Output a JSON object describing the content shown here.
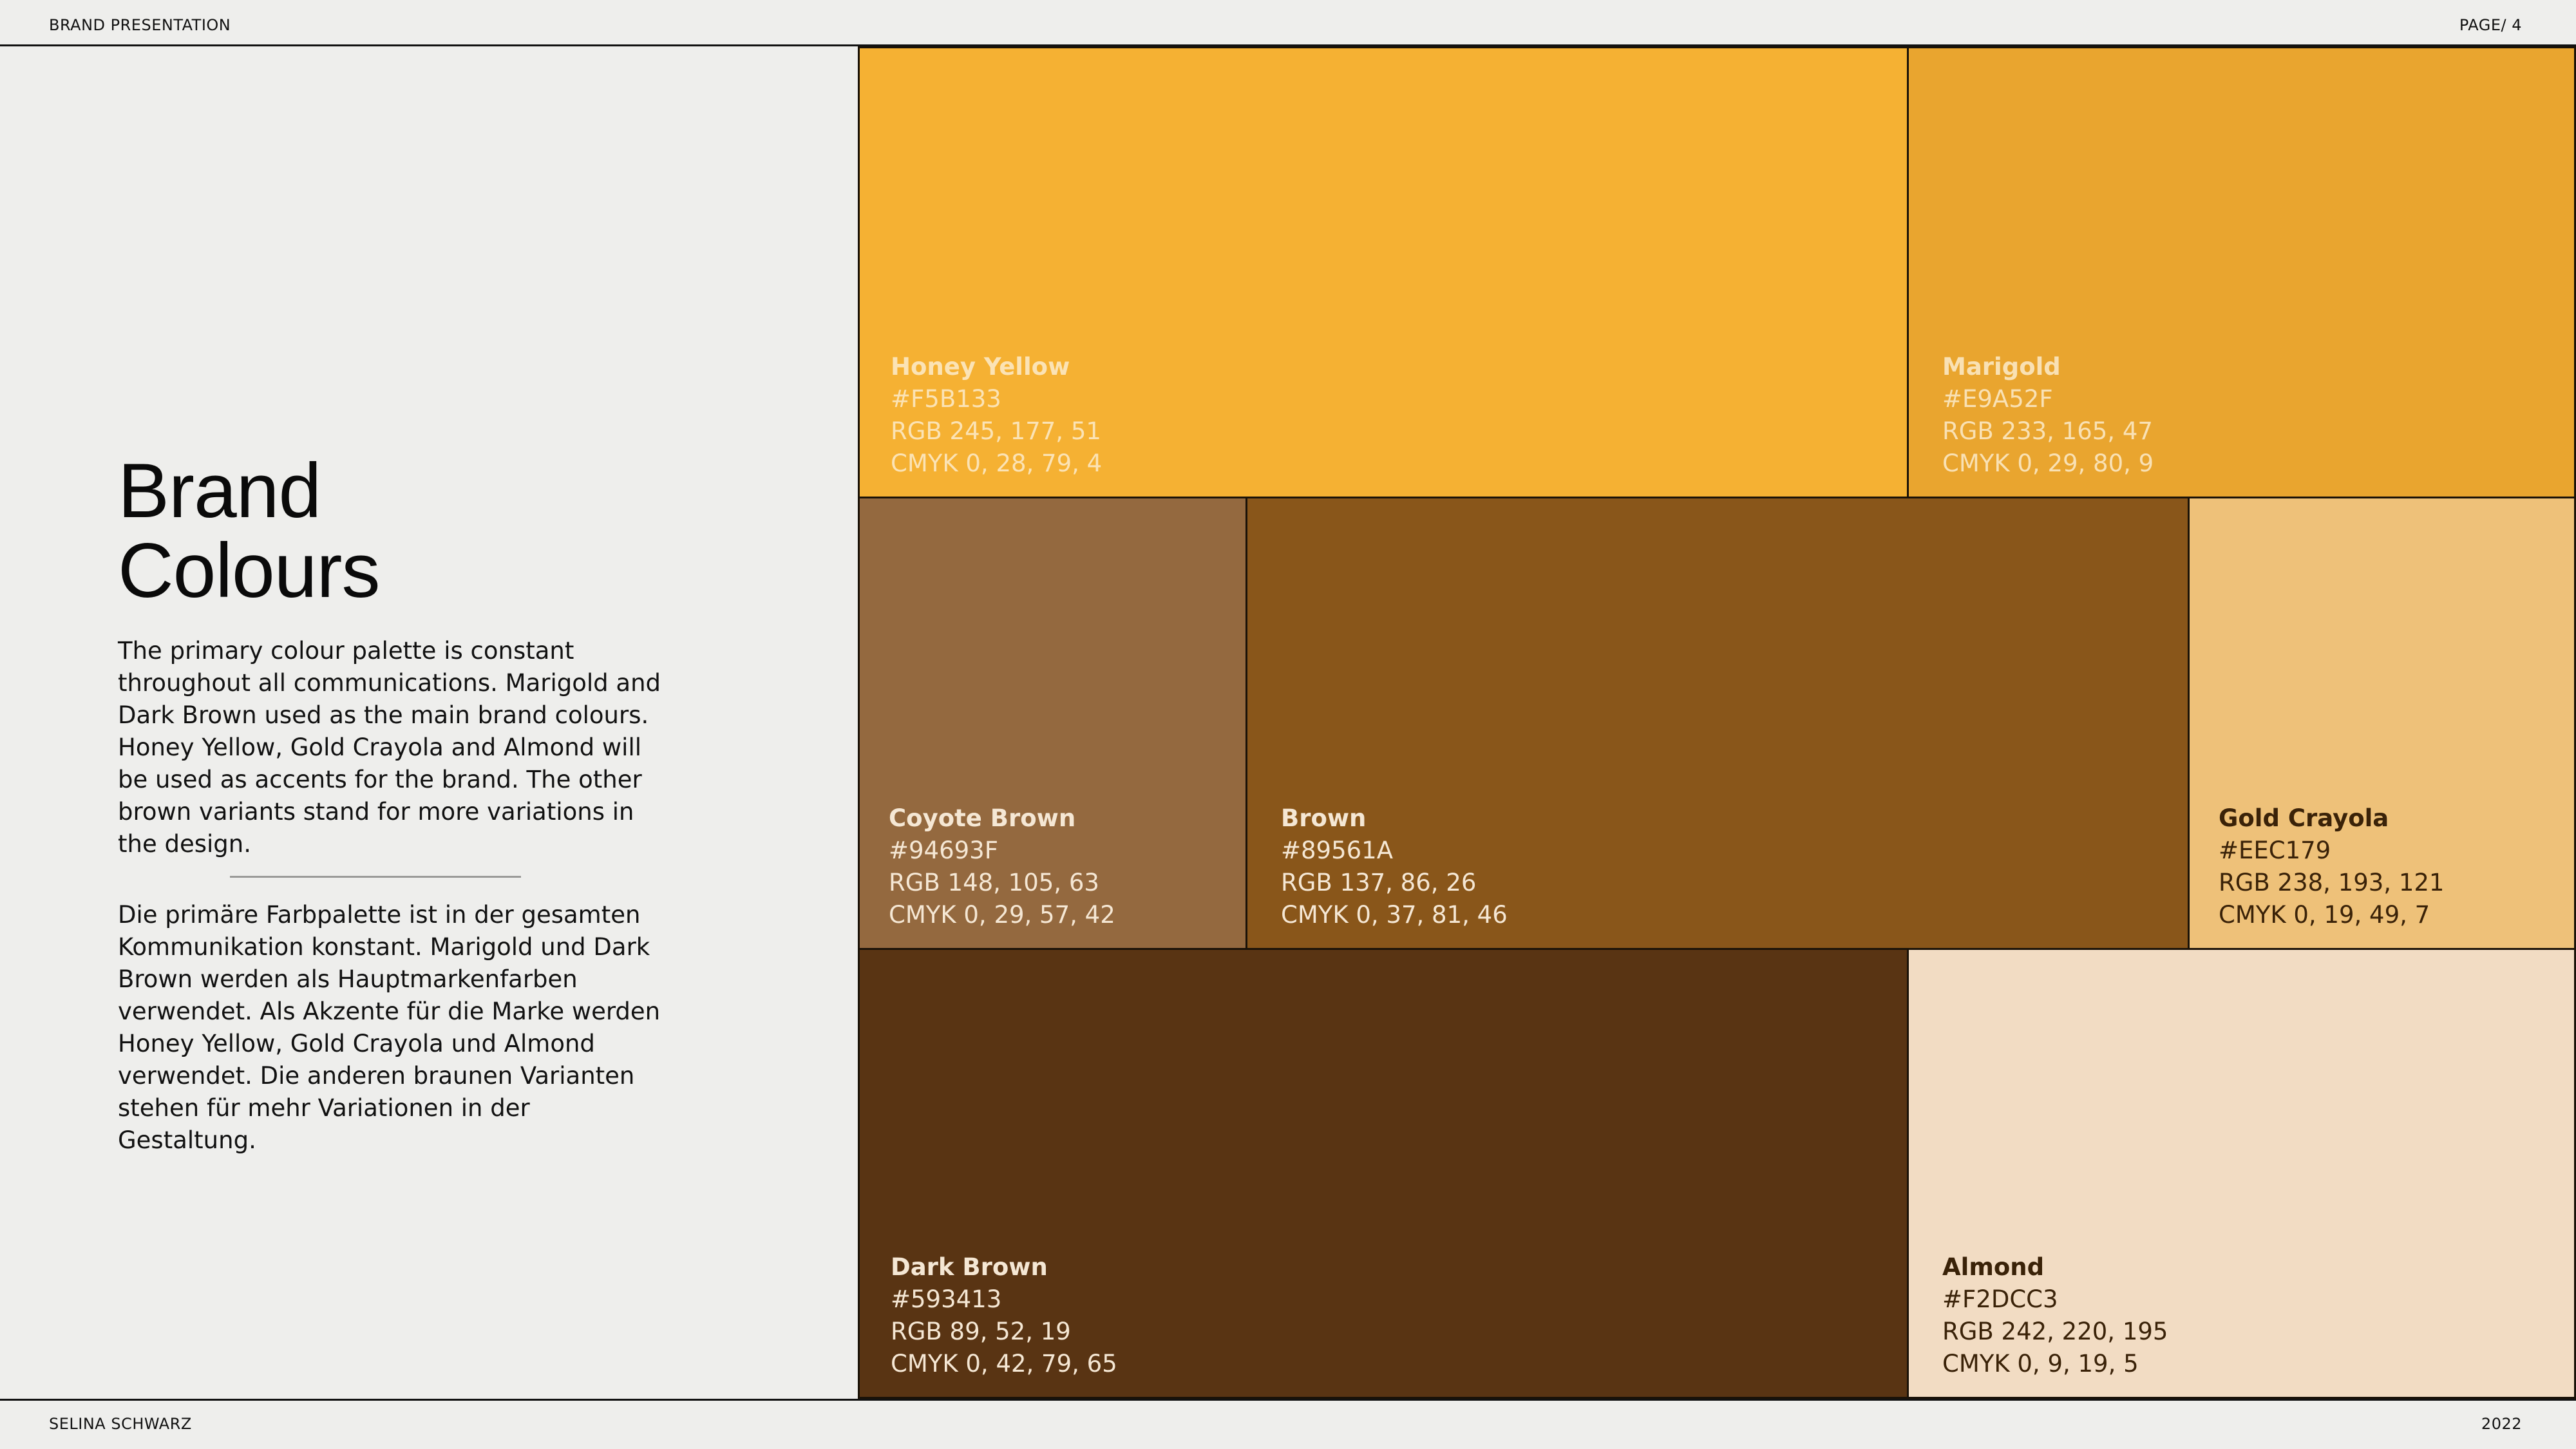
{
  "header": {
    "left": "BRAND PRESENTATION",
    "right": "PAGE/ 4"
  },
  "footer": {
    "left": "SELINA SCHWARZ",
    "right": "2022"
  },
  "main": {
    "title_line1": "Brand",
    "title_line2": "Colours",
    "paragraph_en": "The primary colour palette is constant throughout all communications. Marigold and Dark Brown used as the main brand colours. Honey Yellow, Gold Crayola and Almond will be used as accents for the brand. The other brown variants stand for more variations in the design.",
    "paragraph_de": "Die primäre Farbpalette ist in der gesamten Kommunikation konstant. Marigold und Dark Brown werden als Hauptmarkenfarben verwendet. Als Akzente für die Marke werden Honey Yellow, Gold Crayola und Almond verwendet. Die anderen braunen Varianten stehen für mehr Variationen in der Gestaltung."
  },
  "colors": {
    "honey_yellow": {
      "name": "Honey Yellow",
      "hex": "#F5B133",
      "rgb": "RGB 245, 177, 51",
      "cmyk": "CMYK 0, 28, 79, 4",
      "hex_label": "#F5B133",
      "text_color": "#FBE3B5"
    },
    "marigold": {
      "name": "Marigold",
      "hex": "#E9A52F",
      "rgb": "RGB 233, 165, 47",
      "cmyk": "CMYK 0, 29, 80, 9",
      "hex_label": "#E9A52F",
      "text_color": "#F9E1B4"
    },
    "coyote_brown": {
      "name": "Coyote Brown",
      "hex": "#94693F",
      "rgb": "RGB 148, 105, 63",
      "cmyk": "CMYK 0, 29, 57, 42",
      "hex_label": "#94693F",
      "text_color": "#F5E7D4"
    },
    "brown": {
      "name": "Brown",
      "hex": "#89561A",
      "rgb": "RGB 137, 86, 26",
      "cmyk": "CMYK 0, 37, 81, 46",
      "hex_label": "#89561A",
      "text_color": "#F5E7D4"
    },
    "gold_crayola": {
      "name": "Gold Crayola",
      "hex": "#EEC179",
      "rgb": "RGB 238, 193, 121",
      "cmyk": "CMYK 0, 19, 49, 7",
      "hex_label": "#EEC179",
      "text_color": "#3A2208"
    },
    "dark_brown": {
      "name": "Dark Brown",
      "hex": "#593413",
      "rgb": "RGB 89, 52, 19",
      "cmyk": "CMYK 0, 42, 79, 65",
      "hex_label": "#593413",
      "text_color": "#F5E7D4"
    },
    "almond": {
      "name": "Almond",
      "hex": "#F2DCC3",
      "rgb": "RGB 242, 220, 195",
      "cmyk": "CMYK 0, 9, 19, 5",
      "hex_label": "#F2DCC3",
      "text_color": "#3A2208"
    }
  }
}
